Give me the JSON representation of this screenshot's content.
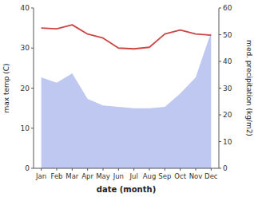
{
  "chart_data": {
    "type": "line",
    "xlabel": "date (month)",
    "ylabel": "max temp (C)",
    "y2label": "med. precipitation (kg/m2)",
    "categories": [
      "Jan",
      "Feb",
      "Mar",
      "Apr",
      "May",
      "Jun",
      "Jul",
      "Aug",
      "Sep",
      "Oct",
      "Nov",
      "Dec"
    ],
    "series": [
      {
        "type": "area",
        "axis": "y2",
        "color": "#bfc8f0",
        "values": [
          34.0,
          32.0,
          35.5,
          26.0,
          23.5,
          23.0,
          22.5,
          22.5,
          23.0,
          28.0,
          34.0,
          51.0
        ]
      },
      {
        "type": "line",
        "color": "#cc4444",
        "values": [
          35.0,
          34.8,
          35.8,
          33.5,
          32.5,
          30.0,
          29.8,
          30.2,
          33.5,
          34.5,
          33.5,
          33.2
        ]
      }
    ],
    "ylim": [
      0,
      40
    ],
    "yticks": [
      0,
      10,
      20,
      30,
      40
    ],
    "y2lim": [
      0,
      60
    ],
    "y2ticks": [
      0,
      10,
      20,
      30,
      40,
      50,
      60
    ]
  }
}
